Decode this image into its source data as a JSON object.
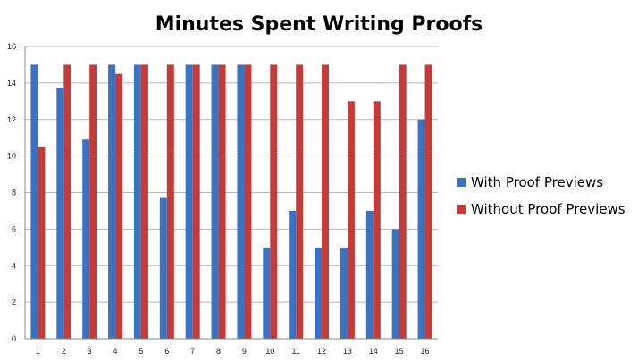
{
  "chart_data": {
    "type": "bar",
    "title": "Minutes Spent Writing Proofs",
    "xlabel": "",
    "ylabel": "",
    "categories": [
      "1",
      "2",
      "3",
      "4",
      "5",
      "6",
      "7",
      "8",
      "9",
      "10",
      "11",
      "12",
      "13",
      "14",
      "15",
      "16"
    ],
    "series": [
      {
        "name": "With Proof Previews",
        "color": "#3B73C2",
        "values": [
          15,
          13.75,
          10.9,
          15,
          15,
          7.75,
          15,
          15,
          15,
          5,
          7,
          5,
          5,
          7,
          6,
          12
        ]
      },
      {
        "name": "Without Proof Previews",
        "color": "#C43C3A",
        "values": [
          10.5,
          15,
          15,
          14.5,
          15,
          15,
          15,
          15,
          15,
          15,
          15,
          15,
          13,
          13,
          15,
          15
        ]
      }
    ],
    "ylim": [
      0,
      16
    ],
    "yticks": [
      0,
      2,
      4,
      6,
      8,
      10,
      12,
      14,
      16
    ],
    "grid": true,
    "legend_position": "right"
  }
}
